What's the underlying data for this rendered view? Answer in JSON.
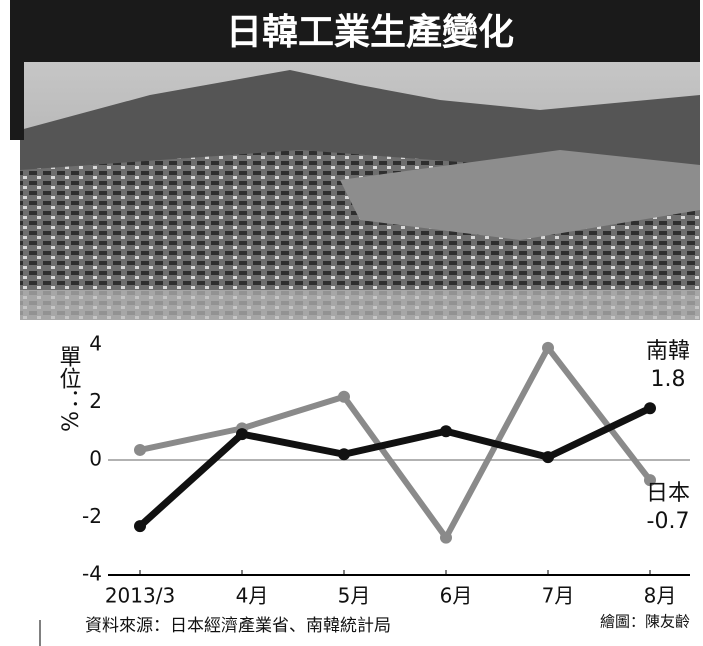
{
  "chart_data": {
    "type": "line",
    "title": "日韓工業生產變化",
    "y_label": "單位：%",
    "categories": [
      "2013/3",
      "4月",
      "5月",
      "6月",
      "7月",
      "8月"
    ],
    "series": [
      {
        "name": "南韓",
        "color": "#111111",
        "values": [
          -2.3,
          0.9,
          0.2,
          1.0,
          0.1,
          1.8
        ]
      },
      {
        "name": "日本",
        "color": "#8a8a8a",
        "values": [
          0.35,
          1.1,
          2.2,
          -2.7,
          3.9,
          -0.7
        ]
      }
    ],
    "ylim": [
      -4,
      4
    ],
    "yticks": [
      -4,
      -2,
      0,
      2,
      4
    ],
    "source": "資料來源：日本經濟產業省、南韓統計局",
    "credit": "繪圖：陳友齡"
  }
}
